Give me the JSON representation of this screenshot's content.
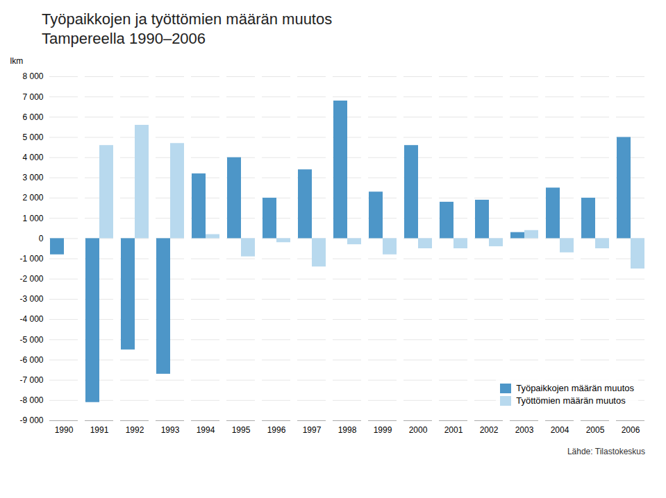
{
  "chart_data": {
    "type": "bar",
    "title": "Työpaikkojen ja työttömien määrän muutos",
    "subtitle": "Tampereella 1990–2006",
    "y_label": "lkm",
    "annotations": [
      "Lähde: Tilastokeskus"
    ],
    "categories": [
      "1990",
      "1991",
      "1992",
      "1993",
      "1994",
      "1995",
      "1996",
      "1997",
      "1998",
      "1999",
      "2000",
      "2001",
      "2002",
      "2003",
      "2004",
      "2005",
      "2006"
    ],
    "series": [
      {
        "name": "Työpaikkojen määrän muutos",
        "color": "#4D96C8",
        "values": [
          -800,
          -8100,
          -5500,
          -6700,
          3200,
          4000,
          2000,
          3400,
          6800,
          2300,
          4600,
          1800,
          1900,
          300,
          2500,
          2000,
          5000
        ]
      },
      {
        "name": "Työttömien määrän muutos",
        "color": "#B8D9EE",
        "values": [
          0,
          4600,
          5600,
          4700,
          200,
          -900,
          -200,
          -1400,
          -300,
          -800,
          -500,
          -500,
          -400,
          400,
          -700,
          -500,
          -1500
        ]
      }
    ],
    "ylim": [
      -9000,
      8000
    ],
    "yticks": [
      {
        "value": -9000,
        "label": "-9 000"
      },
      {
        "value": -8000,
        "label": "-8 000"
      },
      {
        "value": -7000,
        "label": "-7 000"
      },
      {
        "value": -6000,
        "label": "-6 000"
      },
      {
        "value": -5000,
        "label": "-5 000"
      },
      {
        "value": -4000,
        "label": "-4 000"
      },
      {
        "value": -3000,
        "label": "-3 000"
      },
      {
        "value": -2000,
        "label": "-2 000"
      },
      {
        "value": -1000,
        "label": "-1 000"
      },
      0,
      {
        "value": 1000,
        "label": "1 000"
      },
      {
        "value": 2000,
        "label": "2 000"
      },
      {
        "value": 3000,
        "label": "3 000"
      },
      {
        "value": 4000,
        "label": "4 000"
      },
      {
        "value": 5000,
        "label": "5 000"
      },
      {
        "value": 6000,
        "label": "6 000"
      },
      {
        "value": 7000,
        "label": "7 000"
      },
      {
        "value": 8000,
        "label": "8 000"
      }
    ],
    "grid": true,
    "legend": "lower right"
  }
}
